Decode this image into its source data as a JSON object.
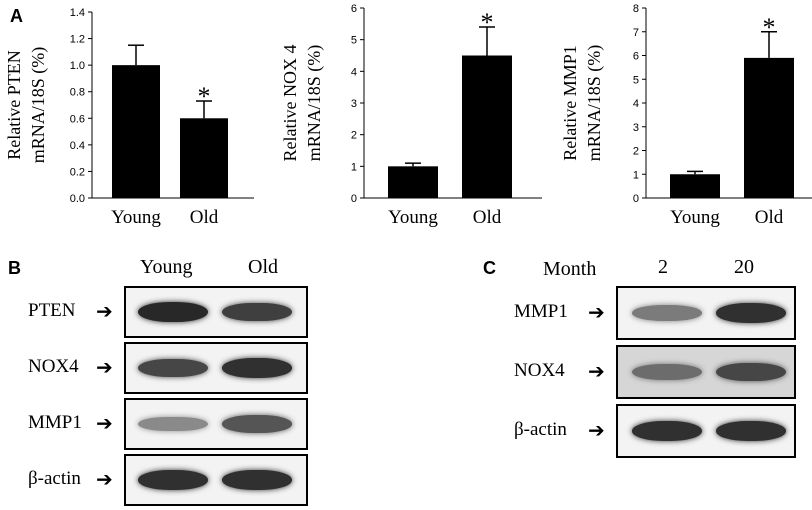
{
  "panels": {
    "a": "A",
    "b": "B",
    "c": "C"
  },
  "chart_data": [
    {
      "type": "bar",
      "categories": [
        "Young",
        "Old"
      ],
      "values": [
        1.0,
        0.6
      ],
      "errors": [
        0.15,
        0.13
      ],
      "significance": [
        "",
        "*"
      ],
      "ylabel_line1": "Relative PTEN",
      "ylabel_line2": "mRNA/18S (%)",
      "ylim": [
        0,
        1.4
      ],
      "yticks": [
        "0.0",
        "0.2",
        "0.4",
        "0.6",
        "0.8",
        "1.0",
        "1.2",
        "1.4"
      ],
      "ytick_values": [
        0,
        0.2,
        0.4,
        0.6,
        0.8,
        1.0,
        1.2,
        1.4
      ]
    },
    {
      "type": "bar",
      "categories": [
        "Young",
        "Old"
      ],
      "values": [
        1.0,
        4.5
      ],
      "errors": [
        0.1,
        0.9
      ],
      "significance": [
        "",
        "*"
      ],
      "ylabel_line1": "Relative NOX 4",
      "ylabel_line2": "mRNA/18S (%)",
      "ylim": [
        0,
        6
      ],
      "yticks": [
        "0",
        "1",
        "2",
        "3",
        "4",
        "5",
        "6"
      ],
      "ytick_values": [
        0,
        1,
        2,
        3,
        4,
        5,
        6
      ]
    },
    {
      "type": "bar",
      "categories": [
        "Young",
        "Old"
      ],
      "values": [
        1.0,
        5.9
      ],
      "errors": [
        0.12,
        1.1
      ],
      "significance": [
        "",
        "*"
      ],
      "ylabel_line1": "Relative MMP1",
      "ylabel_line2": "mRNA/18S (%)",
      "ylim": [
        0,
        8
      ],
      "yticks": [
        "0",
        "1",
        "2",
        "3",
        "4",
        "5",
        "6",
        "7",
        "8"
      ],
      "ytick_values": [
        0,
        1,
        2,
        3,
        4,
        5,
        6,
        7,
        8
      ]
    }
  ],
  "blot_b": {
    "headers": [
      "Young",
      "Old"
    ],
    "rows": [
      {
        "label": "PTEN",
        "intensity": [
          1.0,
          0.85
        ]
      },
      {
        "label": "NOX4",
        "intensity": [
          0.8,
          0.95
        ]
      },
      {
        "label": "MMP1",
        "intensity": [
          0.35,
          0.7
        ]
      },
      {
        "label": "β-actin",
        "intensity": [
          0.95,
          0.95
        ]
      }
    ]
  },
  "blot_c": {
    "header_label": "Month",
    "headers": [
      "2",
      "20"
    ],
    "rows": [
      {
        "label": "MMP1",
        "intensity": [
          0.45,
          0.95
        ]
      },
      {
        "label": "NOX4",
        "intensity": [
          0.55,
          0.8
        ]
      },
      {
        "label": "β-actin",
        "intensity": [
          0.95,
          0.95
        ]
      }
    ]
  },
  "arrow_glyph": "➔",
  "colors": {
    "bar": "#000000",
    "background": "#ffffff"
  }
}
